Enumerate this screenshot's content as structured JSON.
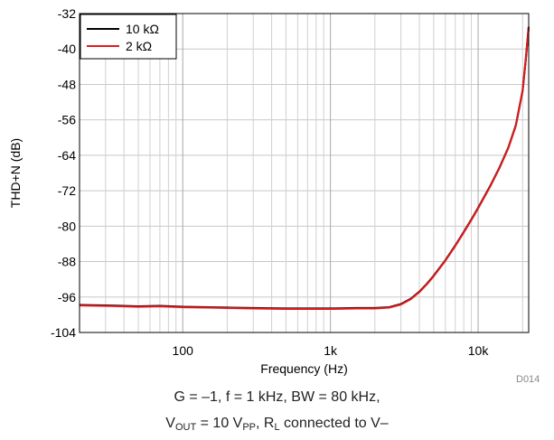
{
  "chart_data": {
    "type": "line",
    "xlabel": "Frequency (Hz)",
    "ylabel": "THD+N (dB)",
    "xscale": "log",
    "xlim": [
      20,
      22000
    ],
    "ylim": [
      -104,
      -32
    ],
    "yticks": [
      -32,
      -40,
      -48,
      -56,
      -64,
      -72,
      -80,
      -88,
      -96,
      -104
    ],
    "xticks": [
      {
        "value": 100,
        "label": "100"
      },
      {
        "value": 1000,
        "label": "1k"
      },
      {
        "value": 10000,
        "label": "10k"
      }
    ],
    "grid": true,
    "legend": {
      "placement": "top-left"
    },
    "series": [
      {
        "name": "10 kΩ",
        "color": "#000000",
        "x": [
          20,
          30,
          50,
          70,
          100,
          150,
          200,
          300,
          500,
          700,
          1000,
          1500,
          2000,
          2500,
          3000,
          3500,
          4000,
          4500,
          5000,
          6000,
          7000,
          8000,
          9000,
          10000,
          12000,
          14000,
          16000,
          18000,
          20000,
          21000,
          22000
        ],
        "y": [
          -97.8,
          -97.9,
          -98.1,
          -98.0,
          -98.2,
          -98.3,
          -98.4,
          -98.5,
          -98.6,
          -98.6,
          -98.6,
          -98.5,
          -98.5,
          -98.3,
          -97.6,
          -96.4,
          -94.8,
          -93.0,
          -91.2,
          -87.7,
          -84.4,
          -81.3,
          -78.5,
          -75.9,
          -71.1,
          -66.7,
          -62.3,
          -57.2,
          -49.5,
          -42.5,
          -35.0
        ]
      },
      {
        "name": "2 kΩ",
        "color": "#e41a1c",
        "x": [
          20,
          30,
          50,
          70,
          100,
          150,
          200,
          300,
          500,
          700,
          1000,
          1500,
          2000,
          2500,
          3000,
          3500,
          4000,
          4500,
          5000,
          6000,
          7000,
          8000,
          9000,
          10000,
          12000,
          14000,
          16000,
          18000,
          20000,
          21000,
          22000
        ],
        "y": [
          -97.9,
          -98.0,
          -98.2,
          -98.1,
          -98.3,
          -98.4,
          -98.5,
          -98.6,
          -98.7,
          -98.7,
          -98.7,
          -98.6,
          -98.6,
          -98.4,
          -97.7,
          -96.5,
          -94.9,
          -93.1,
          -91.3,
          -87.8,
          -84.5,
          -81.4,
          -78.6,
          -76.0,
          -71.2,
          -66.8,
          -62.4,
          -57.3,
          -49.6,
          -42.6,
          -35.1
        ]
      }
    ]
  },
  "figure_ref": "D014",
  "caption": {
    "line1": "G = –1, f = 1 kHz, BW = 80 kHz,",
    "line2_vout": "V",
    "line2_vout_sub": "OUT",
    "line2_eq": " = 10 V",
    "line2_vpp_sub": "PP",
    "line2_mid": ", R",
    "line2_rl_sub": "L",
    "line2_end": " connected to V–"
  }
}
